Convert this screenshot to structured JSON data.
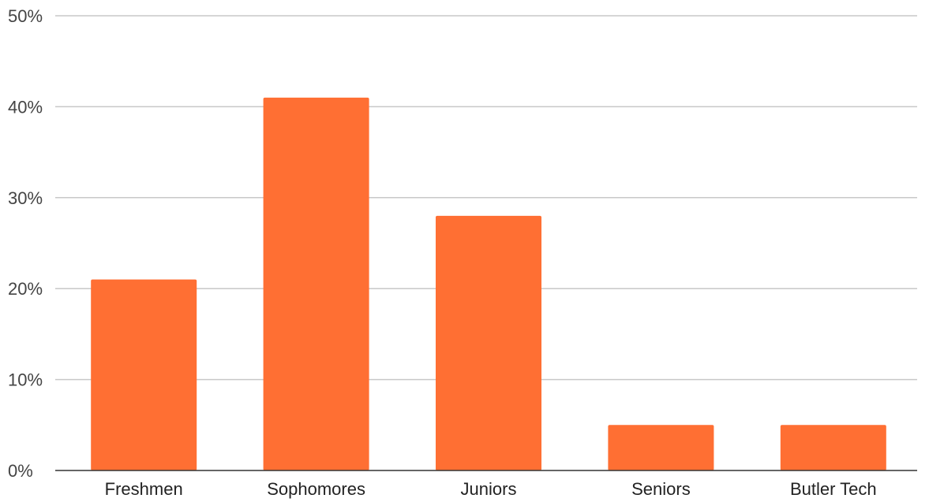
{
  "chart_data": {
    "type": "bar",
    "categories": [
      "Freshmen",
      "Sophomores",
      "Juniors",
      "Seniors",
      "Butler Tech"
    ],
    "series": [
      {
        "values": [
          21,
          41,
          28,
          5,
          5
        ]
      }
    ],
    "value_unit": "%",
    "ylim": [
      0,
      50
    ],
    "yticks": [
      0,
      10,
      20,
      30,
      40,
      50
    ],
    "ytick_labels": [
      "0%",
      "10%",
      "20%",
      "30%",
      "40%",
      "50%"
    ],
    "grid": true,
    "legend": "none",
    "title": "",
    "xlabel": "",
    "ylabel": ""
  },
  "colors": {
    "bar": "#ff6f33",
    "grid": "#c8c8c8",
    "axis": "#333333",
    "text": "#222222"
  }
}
